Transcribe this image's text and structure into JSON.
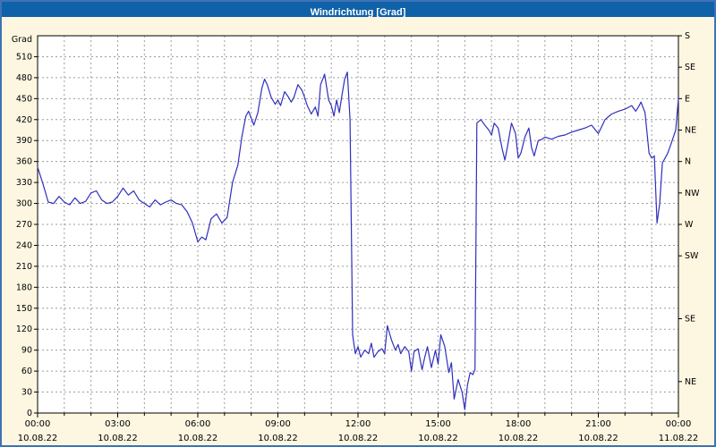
{
  "title": "Windrichtung [Grad]",
  "colors": {
    "titlebar_bg": "#0f62a8",
    "title_text": "#ffffff",
    "window_bg": "#fdf7e1",
    "window_border": "#3f72b5",
    "plot_bg": "#ffffff",
    "plot_border": "#000000",
    "grid": "#9c9c9c",
    "axis_text": "#000000",
    "line": "#2f2fbe"
  },
  "y_axis": {
    "unit": "Grad",
    "ticks": [
      510,
      480,
      450,
      420,
      390,
      360,
      330,
      300,
      270,
      240,
      210,
      180,
      150,
      120,
      90,
      60,
      30,
      0
    ]
  },
  "y_axis_right": {
    "labels": [
      {
        "value": 540,
        "text": "S"
      },
      {
        "value": 495,
        "text": "SE"
      },
      {
        "value": 450,
        "text": "E"
      },
      {
        "value": 405,
        "text": "NE"
      },
      {
        "value": 360,
        "text": "N"
      },
      {
        "value": 315,
        "text": "NW"
      },
      {
        "value": 270,
        "text": "W"
      },
      {
        "value": 225,
        "text": "SW"
      },
      {
        "value": 135,
        "text": "SE"
      },
      {
        "value": 45,
        "text": "NE"
      }
    ]
  },
  "x_axis": {
    "ticks": [
      {
        "hour": 0,
        "time": "00:00",
        "date": "10.08.22"
      },
      {
        "hour": 3,
        "time": "03:00",
        "date": "10.08.22"
      },
      {
        "hour": 6,
        "time": "06:00",
        "date": "10.08.22"
      },
      {
        "hour": 9,
        "time": "09:00",
        "date": "10.08.22"
      },
      {
        "hour": 12,
        "time": "12:00",
        "date": "10.08.22"
      },
      {
        "hour": 15,
        "time": "15:00",
        "date": "10.08.22"
      },
      {
        "hour": 18,
        "time": "18:00",
        "date": "10.08.22"
      },
      {
        "hour": 21,
        "time": "21:00",
        "date": "10.08.22"
      },
      {
        "hour": 24,
        "time": "00:00",
        "date": "11.08.22"
      }
    ]
  },
  "chart_data": {
    "type": "line",
    "title": "Windrichtung [Grad]",
    "xlabel": "",
    "ylabel": "Grad",
    "x_unit": "hours since 10.08.22 00:00",
    "y_unit": "Grad (wind direction, 0-540)",
    "xlim": [
      0,
      24
    ],
    "ylim": [
      0,
      540
    ],
    "grid": true,
    "legend": "none",
    "series": [
      {
        "name": "Windrichtung",
        "color": "#2f2fbe",
        "points": [
          [
            0,
            352
          ],
          [
            0.2,
            328
          ],
          [
            0.4,
            302
          ],
          [
            0.6,
            300
          ],
          [
            0.8,
            310
          ],
          [
            1,
            302
          ],
          [
            1.2,
            298
          ],
          [
            1.4,
            308
          ],
          [
            1.6,
            300
          ],
          [
            1.8,
            303
          ],
          [
            2,
            315
          ],
          [
            2.2,
            318
          ],
          [
            2.4,
            305
          ],
          [
            2.6,
            300
          ],
          [
            2.8,
            302
          ],
          [
            3,
            310
          ],
          [
            3.2,
            322
          ],
          [
            3.4,
            312
          ],
          [
            3.6,
            318
          ],
          [
            3.8,
            305
          ],
          [
            4,
            300
          ],
          [
            4.2,
            295
          ],
          [
            4.4,
            305
          ],
          [
            4.6,
            298
          ],
          [
            4.8,
            302
          ],
          [
            5,
            305
          ],
          [
            5.2,
            300
          ],
          [
            5.4,
            298
          ],
          [
            5.6,
            288
          ],
          [
            5.8,
            272
          ],
          [
            6,
            245
          ],
          [
            6.15,
            252
          ],
          [
            6.3,
            248
          ],
          [
            6.5,
            278
          ],
          [
            6.7,
            285
          ],
          [
            6.9,
            272
          ],
          [
            7.1,
            280
          ],
          [
            7.3,
            330
          ],
          [
            7.5,
            355
          ],
          [
            7.65,
            395
          ],
          [
            7.8,
            425
          ],
          [
            7.9,
            432
          ],
          [
            8,
            422
          ],
          [
            8.1,
            412
          ],
          [
            8.25,
            430
          ],
          [
            8.4,
            465
          ],
          [
            8.5,
            478
          ],
          [
            8.6,
            470
          ],
          [
            8.75,
            452
          ],
          [
            8.9,
            442
          ],
          [
            9,
            448
          ],
          [
            9.1,
            440
          ],
          [
            9.25,
            460
          ],
          [
            9.4,
            452
          ],
          [
            9.5,
            445
          ],
          [
            9.6,
            452
          ],
          [
            9.75,
            470
          ],
          [
            9.9,
            462
          ],
          [
            10,
            452
          ],
          [
            10.1,
            440
          ],
          [
            10.25,
            428
          ],
          [
            10.4,
            438
          ],
          [
            10.5,
            425
          ],
          [
            10.6,
            470
          ],
          [
            10.75,
            485
          ],
          [
            10.9,
            448
          ],
          [
            11,
            440
          ],
          [
            11.1,
            425
          ],
          [
            11.2,
            448
          ],
          [
            11.3,
            430
          ],
          [
            11.4,
            455
          ],
          [
            11.5,
            478
          ],
          [
            11.6,
            488
          ],
          [
            11.7,
            420
          ],
          [
            11.8,
            112
          ],
          [
            11.9,
            85
          ],
          [
            12,
            95
          ],
          [
            12.1,
            80
          ],
          [
            12.25,
            90
          ],
          [
            12.4,
            85
          ],
          [
            12.5,
            100
          ],
          [
            12.6,
            80
          ],
          [
            12.75,
            88
          ],
          [
            12.9,
            92
          ],
          [
            13,
            85
          ],
          [
            13.1,
            125
          ],
          [
            13.25,
            105
          ],
          [
            13.4,
            90
          ],
          [
            13.5,
            98
          ],
          [
            13.6,
            85
          ],
          [
            13.75,
            95
          ],
          [
            13.9,
            88
          ],
          [
            14,
            60
          ],
          [
            14.1,
            88
          ],
          [
            14.25,
            92
          ],
          [
            14.4,
            62
          ],
          [
            14.5,
            80
          ],
          [
            14.6,
            95
          ],
          [
            14.75,
            65
          ],
          [
            14.9,
            90
          ],
          [
            15,
            70
          ],
          [
            15.1,
            112
          ],
          [
            15.25,
            95
          ],
          [
            15.4,
            58
          ],
          [
            15.5,
            72
          ],
          [
            15.6,
            20
          ],
          [
            15.75,
            48
          ],
          [
            15.9,
            30
          ],
          [
            16,
            5
          ],
          [
            16.1,
            40
          ],
          [
            16.2,
            58
          ],
          [
            16.3,
            55
          ],
          [
            16.38,
            62
          ],
          [
            16.45,
            415
          ],
          [
            16.6,
            420
          ],
          [
            16.75,
            412
          ],
          [
            16.9,
            405
          ],
          [
            17,
            398
          ],
          [
            17.1,
            415
          ],
          [
            17.25,
            408
          ],
          [
            17.4,
            378
          ],
          [
            17.5,
            362
          ],
          [
            17.6,
            382
          ],
          [
            17.75,
            415
          ],
          [
            17.9,
            400
          ],
          [
            18,
            365
          ],
          [
            18.1,
            372
          ],
          [
            18.25,
            395
          ],
          [
            18.4,
            408
          ],
          [
            18.5,
            380
          ],
          [
            18.6,
            368
          ],
          [
            18.75,
            390
          ],
          [
            18.9,
            392
          ],
          [
            19,
            395
          ],
          [
            19.25,
            392
          ],
          [
            19.5,
            396
          ],
          [
            19.75,
            398
          ],
          [
            20,
            402
          ],
          [
            20.25,
            405
          ],
          [
            20.5,
            408
          ],
          [
            20.75,
            412
          ],
          [
            21,
            400
          ],
          [
            21.1,
            408
          ],
          [
            21.25,
            420
          ],
          [
            21.5,
            428
          ],
          [
            21.75,
            432
          ],
          [
            22,
            435
          ],
          [
            22.25,
            440
          ],
          [
            22.4,
            432
          ],
          [
            22.5,
            438
          ],
          [
            22.6,
            445
          ],
          [
            22.75,
            430
          ],
          [
            22.9,
            372
          ],
          [
            23,
            365
          ],
          [
            23.1,
            368
          ],
          [
            23.2,
            272
          ],
          [
            23.3,
            300
          ],
          [
            23.4,
            358
          ],
          [
            23.5,
            365
          ],
          [
            23.6,
            372
          ],
          [
            23.75,
            388
          ],
          [
            23.9,
            405
          ],
          [
            24,
            450
          ]
        ]
      }
    ]
  }
}
